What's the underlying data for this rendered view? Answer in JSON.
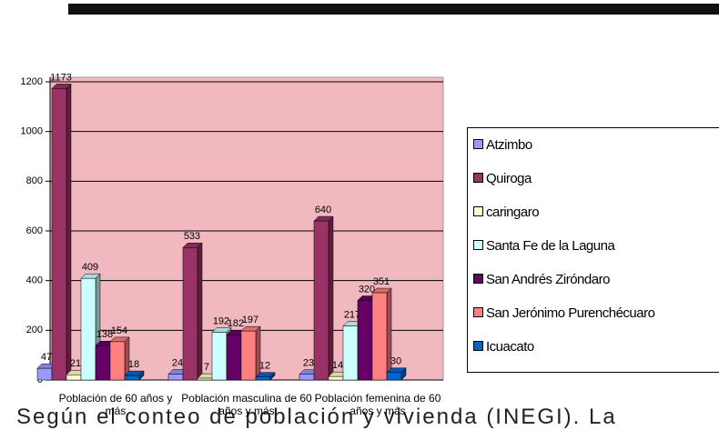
{
  "chart_data": {
    "type": "bar",
    "categories": [
      "Población de 60 años y más",
      "Población masculina de 60 años y más",
      "Población femenina de 60 años y más"
    ],
    "series": [
      {
        "name": "Atzimbo",
        "color": "#9999ff",
        "values": [
          47,
          24,
          23
        ]
      },
      {
        "name": "Quiroga",
        "color": "#993366",
        "values": [
          1173,
          533,
          640
        ]
      },
      {
        "name": "caringaro",
        "color": "#ffffcc",
        "values": [
          21,
          7,
          14
        ]
      },
      {
        "name": "Santa Fe de la Laguna",
        "color": "#ccffff",
        "values": [
          409,
          192,
          217
        ]
      },
      {
        "name": "San Andrés Ziróndaro",
        "color": "#660066",
        "values": [
          138,
          182,
          320
        ]
      },
      {
        "name": "San Jerónimo Purenchécuaro",
        "color": "#ff8080",
        "values": [
          154,
          197,
          351
        ]
      },
      {
        "name": "Icuacato",
        "color": "#0066cc",
        "values": [
          18,
          12,
          30
        ]
      }
    ],
    "ylim": [
      0,
      1200
    ],
    "yticks": [
      0,
      200,
      400,
      600,
      800,
      1000,
      1200
    ],
    "grid": true,
    "legend": "right"
  },
  "body_text": "Según el conteo de población y vivienda (INEGI). La"
}
